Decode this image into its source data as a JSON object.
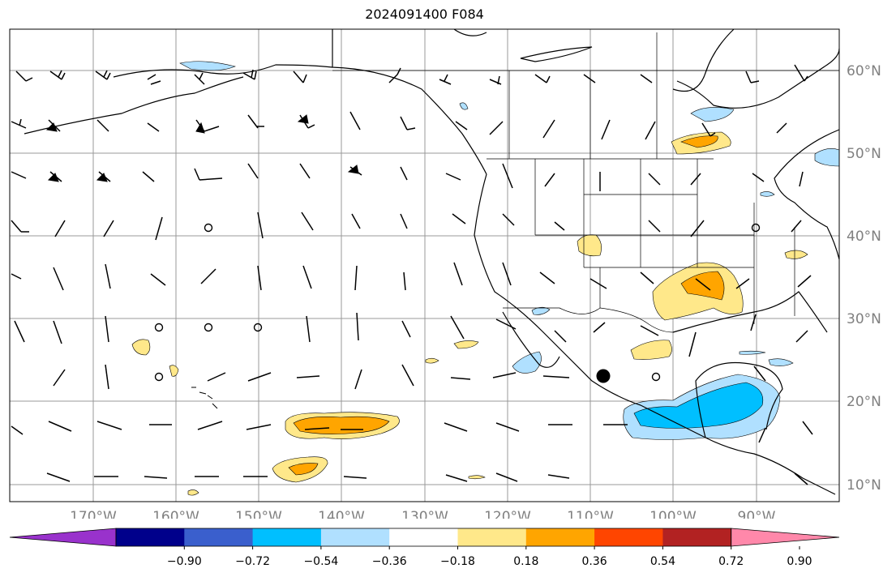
{
  "title": "2024091400 F084",
  "map": {
    "lon_ticks": [
      "170°W",
      "160°W",
      "150°W",
      "140°W",
      "130°W",
      "120°W",
      "110°W",
      "100°W",
      "90°W"
    ],
    "lat_ticks": [
      "60°N",
      "50°N",
      "40°N",
      "30°N",
      "20°N",
      "10°N"
    ],
    "tick_color": "#808080",
    "grid": true,
    "land_color": "#ffffff",
    "ocean_color": "#ffffff"
  },
  "colorbar": {
    "levels": [
      "−0.90",
      "−0.72",
      "−0.54",
      "−0.36",
      "−0.18",
      "0.18",
      "0.36",
      "0.54",
      "0.72",
      "0.90"
    ],
    "colors": [
      "#9932cc",
      "#00008b",
      "#3a5fcd",
      "#00bfff",
      "#b0e0ff",
      "#ffffff",
      "#ffe88a",
      "#ffa500",
      "#ff4500",
      "#b22222",
      "#ff88aa"
    ],
    "extend": "both"
  },
  "marker": {
    "type": "filled-circle",
    "color": "#000000"
  }
}
